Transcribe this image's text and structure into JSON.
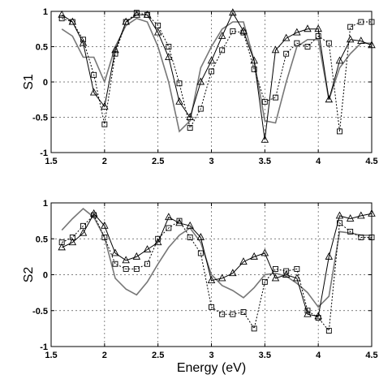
{
  "chart_data": [
    {
      "type": "line",
      "ylabel": "S1",
      "xlabel": "",
      "xlim": [
        1.5,
        4.5
      ],
      "ylim": [
        -1,
        1
      ],
      "xticks": [
        "1.5",
        "2",
        "2.5",
        "3",
        "3.5",
        "4",
        "4.5"
      ],
      "yticks": [
        "-1",
        "-0.5",
        "0",
        "0.5",
        "1"
      ],
      "grid": true,
      "series": [
        {
          "style": "solid-gray",
          "x": [
            1.6,
            1.7,
            1.8,
            1.9,
            2.0,
            2.1,
            2.2,
            2.3,
            2.4,
            2.5,
            2.6,
            2.7,
            2.8,
            2.9,
            3.0,
            3.1,
            3.2,
            3.3,
            3.4,
            3.5,
            3.6,
            3.7,
            3.8,
            3.9,
            4.0,
            4.1,
            4.2,
            4.3,
            4.4,
            4.5
          ],
          "y": [
            0.75,
            0.65,
            0.35,
            0.35,
            0.0,
            0.5,
            0.8,
            0.9,
            0.85,
            0.5,
            0.0,
            -0.7,
            -0.55,
            0.2,
            0.5,
            0.75,
            0.85,
            0.85,
            0.3,
            -0.55,
            -0.58,
            0.0,
            0.5,
            0.6,
            0.6,
            -0.25,
            0.2,
            0.4,
            0.55,
            0.55
          ]
        },
        {
          "style": "triangle-solid",
          "x": [
            1.6,
            1.7,
            1.8,
            1.9,
            2.0,
            2.1,
            2.2,
            2.3,
            2.4,
            2.5,
            2.6,
            2.7,
            2.8,
            2.9,
            3.0,
            3.1,
            3.2,
            3.3,
            3.4,
            3.5,
            3.6,
            3.7,
            3.8,
            3.9,
            4.0,
            4.1,
            4.2,
            4.3,
            4.4,
            4.5
          ],
          "y": [
            0.95,
            0.85,
            0.55,
            -0.15,
            -0.35,
            0.45,
            0.85,
            0.95,
            0.95,
            0.7,
            0.35,
            -0.28,
            -0.5,
            0.0,
            0.3,
            0.65,
            0.98,
            0.72,
            0.3,
            -0.82,
            0.45,
            0.62,
            0.7,
            0.75,
            0.75,
            -0.25,
            0.3,
            0.6,
            0.58,
            0.52
          ]
        },
        {
          "style": "square-dotted",
          "x": [
            1.6,
            1.7,
            1.8,
            1.9,
            2.0,
            2.1,
            2.2,
            2.3,
            2.4,
            2.5,
            2.6,
            2.7,
            2.8,
            2.9,
            3.0,
            3.1,
            3.2,
            3.3,
            3.4,
            3.5,
            3.6,
            3.7,
            3.8,
            3.9,
            4.0,
            4.1,
            4.2,
            4.3,
            4.4,
            4.5
          ],
          "y": [
            0.9,
            0.85,
            0.6,
            0.1,
            -0.6,
            0.4,
            0.85,
            0.98,
            0.95,
            0.8,
            0.5,
            -0.02,
            -0.65,
            -0.38,
            0.15,
            0.45,
            0.72,
            0.7,
            0.18,
            -0.28,
            -0.22,
            0.4,
            0.55,
            0.5,
            0.65,
            0.55,
            -0.7,
            0.78,
            0.85,
            0.85
          ]
        }
      ]
    },
    {
      "type": "line",
      "ylabel": "S2",
      "xlabel": "Energy (eV)",
      "xlim": [
        1.5,
        4.5
      ],
      "ylim": [
        -1,
        1
      ],
      "xticks": [
        "1.5",
        "2",
        "2.5",
        "3",
        "3.5",
        "4",
        "4.5"
      ],
      "yticks": [
        "-1",
        "-0.5",
        "0",
        "0.5",
        "1"
      ],
      "grid": true,
      "series": [
        {
          "style": "solid-gray",
          "x": [
            1.6,
            1.7,
            1.8,
            1.9,
            2.0,
            2.1,
            2.2,
            2.3,
            2.4,
            2.5,
            2.6,
            2.7,
            2.8,
            2.9,
            3.0,
            3.1,
            3.2,
            3.3,
            3.4,
            3.5,
            3.6,
            3.7,
            3.8,
            3.9,
            4.0,
            4.1,
            4.2,
            4.3,
            4.4,
            4.5
          ],
          "y": [
            0.62,
            0.78,
            0.92,
            0.8,
            0.52,
            -0.05,
            -0.2,
            -0.28,
            -0.1,
            0.15,
            0.38,
            0.55,
            0.65,
            0.45,
            0.0,
            -0.15,
            -0.22,
            -0.32,
            -0.18,
            0.0,
            0.02,
            -0.02,
            -0.12,
            -0.25,
            -0.45,
            -0.3,
            0.6,
            0.58,
            0.55,
            0.55
          ]
        },
        {
          "style": "triangle-solid",
          "x": [
            1.6,
            1.7,
            1.8,
            1.9,
            2.0,
            2.1,
            2.2,
            2.3,
            2.4,
            2.5,
            2.6,
            2.7,
            2.8,
            2.9,
            3.0,
            3.1,
            3.2,
            3.3,
            3.4,
            3.5,
            3.6,
            3.7,
            3.8,
            3.9,
            4.0,
            4.1,
            4.2,
            4.3,
            4.4,
            4.5
          ],
          "y": [
            0.38,
            0.45,
            0.58,
            0.85,
            0.68,
            0.3,
            0.2,
            0.25,
            0.35,
            0.45,
            0.8,
            0.72,
            0.68,
            0.52,
            -0.08,
            -0.05,
            0.02,
            0.18,
            0.25,
            0.3,
            -0.05,
            0.0,
            -0.05,
            -0.55,
            -0.58,
            0.25,
            0.82,
            0.78,
            0.82,
            0.85
          ]
        },
        {
          "style": "square-dotted",
          "x": [
            1.6,
            1.7,
            1.8,
            1.9,
            2.0,
            2.1,
            2.2,
            2.3,
            2.4,
            2.5,
            2.6,
            2.7,
            2.8,
            2.9,
            3.0,
            3.1,
            3.2,
            3.3,
            3.4,
            3.5,
            3.6,
            3.7,
            3.8,
            3.9,
            4.0,
            4.1,
            4.2,
            4.3,
            4.4,
            4.5
          ],
          "y": [
            0.45,
            0.52,
            0.68,
            0.83,
            0.52,
            0.15,
            0.08,
            0.08,
            0.15,
            0.5,
            0.65,
            0.75,
            0.52,
            0.3,
            -0.45,
            -0.55,
            -0.55,
            -0.52,
            -0.75,
            -0.1,
            0.08,
            0.05,
            0.08,
            -0.5,
            -0.6,
            -0.78,
            0.72,
            0.6,
            0.52,
            0.52
          ]
        }
      ]
    }
  ]
}
